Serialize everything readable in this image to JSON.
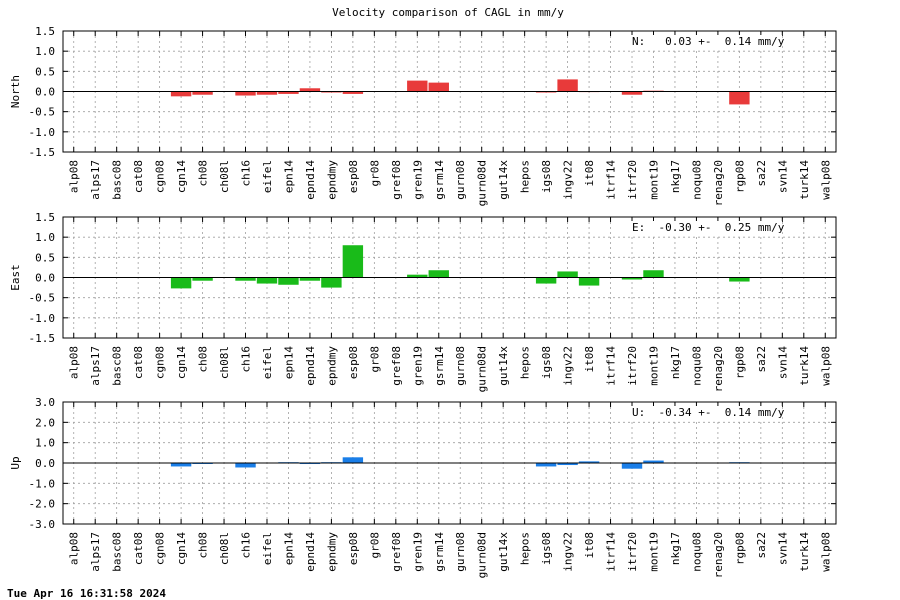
{
  "title": "Velocity comparison of CAGL in mm/y",
  "timestamp": "Tue Apr 16 16:31:58 2024",
  "chart_data": [
    {
      "type": "bar",
      "ylabel": "North",
      "annotation": "N:   0.03 +-  0.14 mm/y",
      "color": "#e83a3a",
      "ylim": [
        -1.5,
        1.5
      ],
      "yticks": [
        "1.5",
        "1.0",
        "0.5",
        "0.0",
        "-0.5",
        "-1.0",
        "-1.5"
      ],
      "grid": true,
      "categories": [
        "alp08",
        "alps17",
        "basc08",
        "cat08",
        "cgn08",
        "cgn14",
        "ch08",
        "ch08l",
        "ch16",
        "eifel",
        "epn14",
        "epnd14",
        "epndmy",
        "esp08",
        "gr08",
        "gref08",
        "gren19",
        "gsrm14",
        "gurn08",
        "gurn08d",
        "gut14x",
        "hepos",
        "igs08",
        "ingv22",
        "it08",
        "itrf14",
        "itrf20",
        "mont19",
        "nkg17",
        "noqu08",
        "renag20",
        "rgp08",
        "sa22",
        "svn14",
        "turk14",
        "walp08"
      ],
      "values": [
        0,
        0,
        0,
        0,
        0,
        -0.12,
        -0.08,
        0,
        -0.1,
        -0.08,
        -0.06,
        0.08,
        -0.02,
        -0.06,
        0,
        0,
        0.27,
        0.22,
        0,
        0,
        0,
        0,
        -0.02,
        0.3,
        0.01,
        0,
        -0.08,
        0.02,
        0,
        0,
        0,
        -0.32,
        0,
        0,
        0,
        0
      ]
    },
    {
      "type": "bar",
      "ylabel": "East",
      "annotation": "E:  -0.30 +-  0.25 mm/y",
      "color": "#19bb19",
      "ylim": [
        -1.5,
        1.5
      ],
      "yticks": [
        "1.5",
        "1.0",
        "0.5",
        "0.0",
        "-0.5",
        "-1.0",
        "-1.5"
      ],
      "grid": true,
      "categories": [
        "alp08",
        "alps17",
        "basc08",
        "cat08",
        "cgn08",
        "cgn14",
        "ch08",
        "ch08l",
        "ch16",
        "eifel",
        "epn14",
        "epnd14",
        "epndmy",
        "esp08",
        "gr08",
        "gref08",
        "gren19",
        "gsrm14",
        "gurn08",
        "gurn08d",
        "gut14x",
        "hepos",
        "igs08",
        "ingv22",
        "it08",
        "itrf14",
        "itrf20",
        "mont19",
        "nkg17",
        "noqu08",
        "renag20",
        "rgp08",
        "sa22",
        "svn14",
        "turk14",
        "walp08"
      ],
      "values": [
        0,
        0,
        0,
        0,
        0,
        -0.27,
        -0.08,
        0,
        -0.08,
        -0.15,
        -0.18,
        -0.08,
        -0.25,
        0.8,
        0,
        0,
        0.07,
        0.18,
        0,
        0,
        0,
        0,
        -0.15,
        0.15,
        -0.2,
        0,
        -0.05,
        0.18,
        0,
        0,
        0,
        -0.1,
        0,
        0,
        0,
        0
      ]
    },
    {
      "type": "bar",
      "ylabel": "Up",
      "annotation": "U:  -0.34 +-  0.14 mm/y",
      "color": "#1a7ee8",
      "ylim": [
        -3.0,
        3.0
      ],
      "yticks": [
        "3.0",
        "2.0",
        "1.0",
        "0.0",
        "-1.0",
        "-2.0",
        "-3.0"
      ],
      "grid": true,
      "categories": [
        "alp08",
        "alps17",
        "basc08",
        "cat08",
        "cgn08",
        "cgn14",
        "ch08",
        "ch08l",
        "ch16",
        "eifel",
        "epn14",
        "epnd14",
        "epndmy",
        "esp08",
        "gr08",
        "gref08",
        "gren19",
        "gsrm14",
        "gurn08",
        "gurn08d",
        "gut14x",
        "hepos",
        "igs08",
        "ingv22",
        "it08",
        "itrf14",
        "itrf20",
        "mont19",
        "nkg17",
        "noqu08",
        "renag20",
        "rgp08",
        "sa22",
        "svn14",
        "turk14",
        "walp08"
      ],
      "values": [
        0,
        0,
        0,
        0,
        0,
        -0.17,
        -0.03,
        0,
        -0.22,
        0,
        0.04,
        -0.05,
        0.04,
        0.28,
        0,
        0,
        0,
        0,
        0,
        0,
        0,
        0,
        -0.17,
        -0.1,
        0.08,
        0,
        -0.28,
        0.12,
        0,
        0,
        0,
        0.04,
        0,
        0,
        0,
        0
      ]
    }
  ]
}
